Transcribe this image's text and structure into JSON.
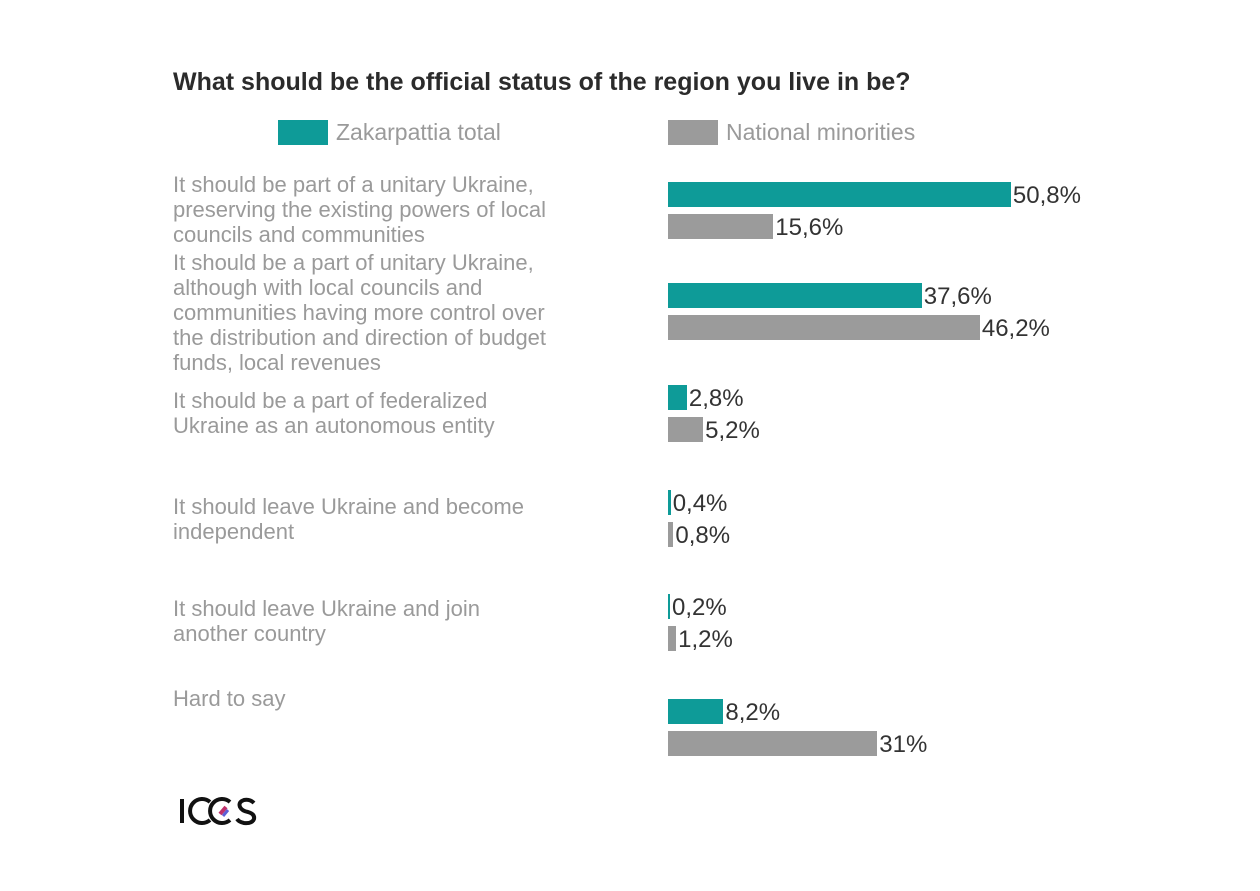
{
  "chart_data": {
    "type": "bar",
    "orientation": "horizontal",
    "title": "What should be the official status of the region you live in be?",
    "xlabel": "",
    "ylabel": "",
    "xlim": [
      0,
      55
    ],
    "grid": false,
    "legend": "top",
    "categories": [
      "It should be part of a unitary Ukraine,\npreserving the existing powers of local\ncouncils and communities",
      "It should be a part of unitary Ukraine,\nalthough with local councils and\ncommunities having more control over\nthe distribution and direction of budget\nfunds, local revenues",
      "It should be a part of federalized\nUkraine as an autonomous entity",
      "It should leave Ukraine and become\nindependent",
      "It should leave Ukraine and join\nanother country",
      "Hard to say"
    ],
    "series": [
      {
        "name": "Zakarpattia total",
        "color": "#0e9b98",
        "values": [
          50.8,
          37.6,
          2.8,
          0.4,
          0.2,
          8.2
        ],
        "labels": [
          "50,8%",
          "37,6%",
          "2,8%",
          "0,4%",
          "0,2%",
          "8,2%"
        ]
      },
      {
        "name": "National minorities",
        "color": "#9b9b9b",
        "values": [
          15.6,
          46.2,
          5.2,
          0.8,
          1.2,
          31
        ],
        "labels": [
          "15,6%",
          "46,2%",
          "5,2%",
          "0,8%",
          "1,2%",
          "31%"
        ]
      }
    ]
  },
  "logo": "ICCS"
}
